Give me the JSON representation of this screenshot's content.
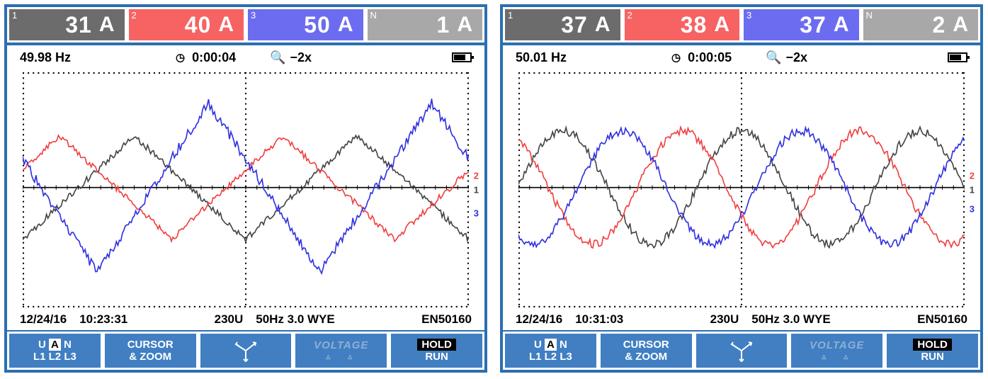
{
  "screens": [
    {
      "channels": [
        {
          "idx": "1",
          "value": "31",
          "unit": "A",
          "bg": "#6c6c6c"
        },
        {
          "idx": "2",
          "value": "40",
          "unit": "A",
          "bg": "#f76262"
        },
        {
          "idx": "3",
          "value": "50",
          "unit": "A",
          "bg": "#6c6cf0"
        },
        {
          "idx": "N",
          "value": "1",
          "unit": "A",
          "bg": "#a8a8a8"
        }
      ],
      "info": {
        "frequency": "49.98 Hz",
        "elapsed": "0:00:04",
        "zoom": "−2x"
      },
      "status": {
        "date": "12/24/16",
        "time": "10:23:31",
        "volts": "230U",
        "cfg": "50Hz 3.0 WYE",
        "std": "EN50160"
      },
      "waveforms": {
        "shape": "triangle",
        "traces": [
          {
            "label": "1",
            "color": "#444444",
            "amp": 0.44,
            "phase": 0,
            "y": 0.5
          },
          {
            "label": "2",
            "color": "#f04040",
            "amp": 0.44,
            "phase": 120,
            "y": 0.44
          },
          {
            "label": "3",
            "color": "#3030e0",
            "amp": 0.72,
            "phase": 240,
            "y": 0.6
          }
        ],
        "cycles": 2,
        "noise": 0.02,
        "grid_color": "#000000",
        "axis_y": 0.49
      }
    },
    {
      "channels": [
        {
          "idx": "1",
          "value": "37",
          "unit": "A",
          "bg": "#6c6c6c"
        },
        {
          "idx": "2",
          "value": "38",
          "unit": "A",
          "bg": "#f76262"
        },
        {
          "idx": "3",
          "value": "37",
          "unit": "A",
          "bg": "#6c6cf0"
        },
        {
          "idx": "N",
          "value": "2",
          "unit": "A",
          "bg": "#a8a8a8"
        }
      ],
      "info": {
        "frequency": "50.01 Hz",
        "elapsed": "0:00:05",
        "zoom": "−2x"
      },
      "status": {
        "date": "12/24/16",
        "time": "10:31:03",
        "volts": "230U",
        "cfg": "50Hz 3.0 WYE",
        "std": "EN50160"
      },
      "waveforms": {
        "shape": "sine",
        "traces": [
          {
            "label": "1",
            "color": "#444444",
            "amp": 0.48,
            "phase": 0,
            "y": 0.5
          },
          {
            "label": "2",
            "color": "#f04040",
            "amp": 0.48,
            "phase": 120,
            "y": 0.44
          },
          {
            "label": "3",
            "color": "#3030e0",
            "amp": 0.48,
            "phase": 240,
            "y": 0.58
          }
        ],
        "cycles": 2.5,
        "noise": 0.025,
        "grid_color": "#000000",
        "axis_y": 0.49
      }
    }
  ],
  "softkeys": {
    "f1": {
      "line1": "U",
      "line1_inv": "A",
      "line1b": "N",
      "line2": "L1  L2  L3"
    },
    "f2": {
      "line1": "CURSOR",
      "line2": "& ZOOM"
    },
    "f4": {
      "label": "VOLTAGE"
    },
    "f5": {
      "line1": "HOLD",
      "line2": "RUN"
    }
  },
  "colors": {
    "frame": "#2b6fb0",
    "softkey_bg": "#417fc2",
    "softkey_disabled_text": "#8faed4"
  }
}
